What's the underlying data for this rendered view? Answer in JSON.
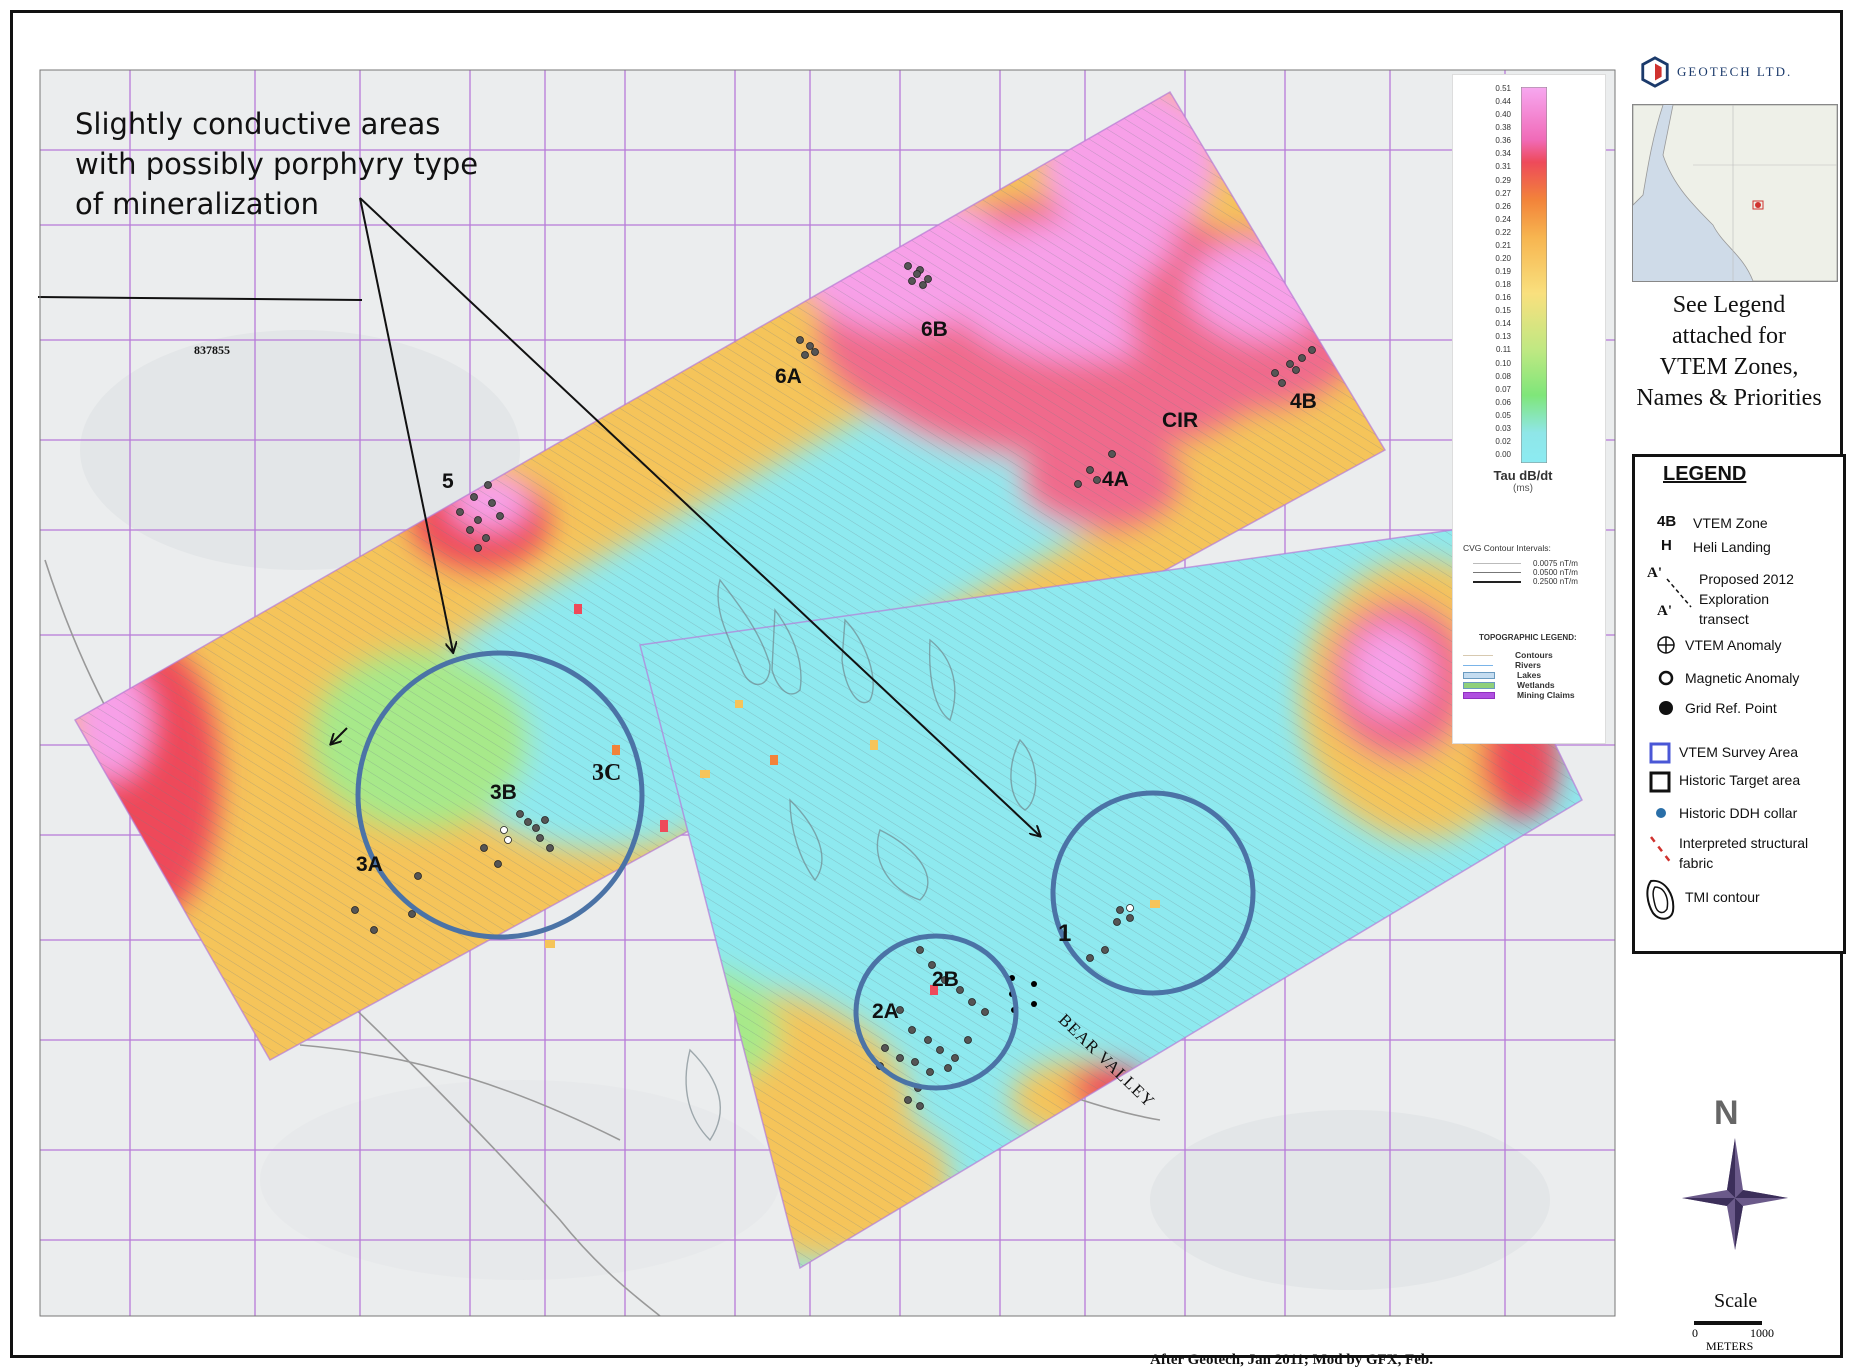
{
  "callout": {
    "line1": "Slightly conductive areas",
    "line2": "with possibly porphyry type",
    "line3": "of mineralization"
  },
  "claim_id": "837855",
  "zones": {
    "z5": "5",
    "z6A": "6A",
    "z6B": "6B",
    "zCIR": "CIR",
    "z4A": "4A",
    "z4B": "4B",
    "z3A": "3A",
    "z3B": "3B",
    "z3C": "3C",
    "z2A": "2A",
    "z2B": "2B",
    "z1": "1"
  },
  "place_label": "BEAR VALLEY",
  "color_scale": {
    "ticks": [
      "0.51",
      "0.44",
      "0.40",
      "0.38",
      "0.36",
      "0.34",
      "0.31",
      "0.29",
      "0.27",
      "0.26",
      "0.24",
      "0.22",
      "0.21",
      "0.20",
      "0.19",
      "0.18",
      "0.16",
      "0.15",
      "0.14",
      "0.13",
      "0.11",
      "0.10",
      "0.08",
      "0.07",
      "0.06",
      "0.05",
      "0.03",
      "0.02",
      "0.00"
    ],
    "title": "Tau dB/dt",
    "unit": "(ms)",
    "colors": [
      "#f7a8f0",
      "#f06bb8",
      "#ee4a5a",
      "#f2833a",
      "#f7b550",
      "#f9e07e",
      "#bfe882",
      "#7fe67a",
      "#8fe6e8",
      "#8cebf2"
    ]
  },
  "cvg": {
    "title": "CVG Contour Intervals:",
    "rows": [
      "0.0075 nT/m",
      "0.0500 nT/m",
      "0.2500 nT/m"
    ]
  },
  "topo": {
    "title": "TOPOGRAPHIC LEGEND:",
    "rows": [
      {
        "label": "Contours",
        "color": "#d7c9b0"
      },
      {
        "label": "Rivers",
        "color": "#7ab4e8"
      },
      {
        "label": "Lakes",
        "color": "#c4dcf0"
      },
      {
        "label": "Wetlands",
        "color": "#8fd07a"
      },
      {
        "label": "Mining Claims",
        "color": "#b050e0"
      }
    ]
  },
  "logo_text": "GEOTECH LTD.",
  "see_legend": {
    "line1": "See Legend",
    "line2": "attached for",
    "line3": "VTEM Zones,",
    "line4": "Names & Priorities"
  },
  "legend": {
    "title": "LEGEND",
    "code_zone": "4B",
    "zone": "VTEM Zone",
    "code_heli": "H",
    "heli": "Heli Landing",
    "transect1": "Proposed 2012",
    "transect2": "Exploration",
    "transect3": "transect",
    "transect_a": "A'",
    "transect_b": "A'",
    "vtem_anomaly": "VTEM Anomaly",
    "mag_anomaly": "Magnetic Anomaly",
    "grid_ref": "Grid Ref. Point",
    "survey_area": "VTEM Survey Area",
    "historic_target": "Historic Target area",
    "ddh": "Historic DDH collar",
    "structural1": "Interpreted structural",
    "structural2": "fabric",
    "tmi": "TMI contour"
  },
  "north": "N",
  "scale": {
    "title": "Scale",
    "zero": "0",
    "max": "1000",
    "units": "METERS"
  },
  "credit": "After Geotech, Jan 2011;  Mod by GFX, Feb."
}
